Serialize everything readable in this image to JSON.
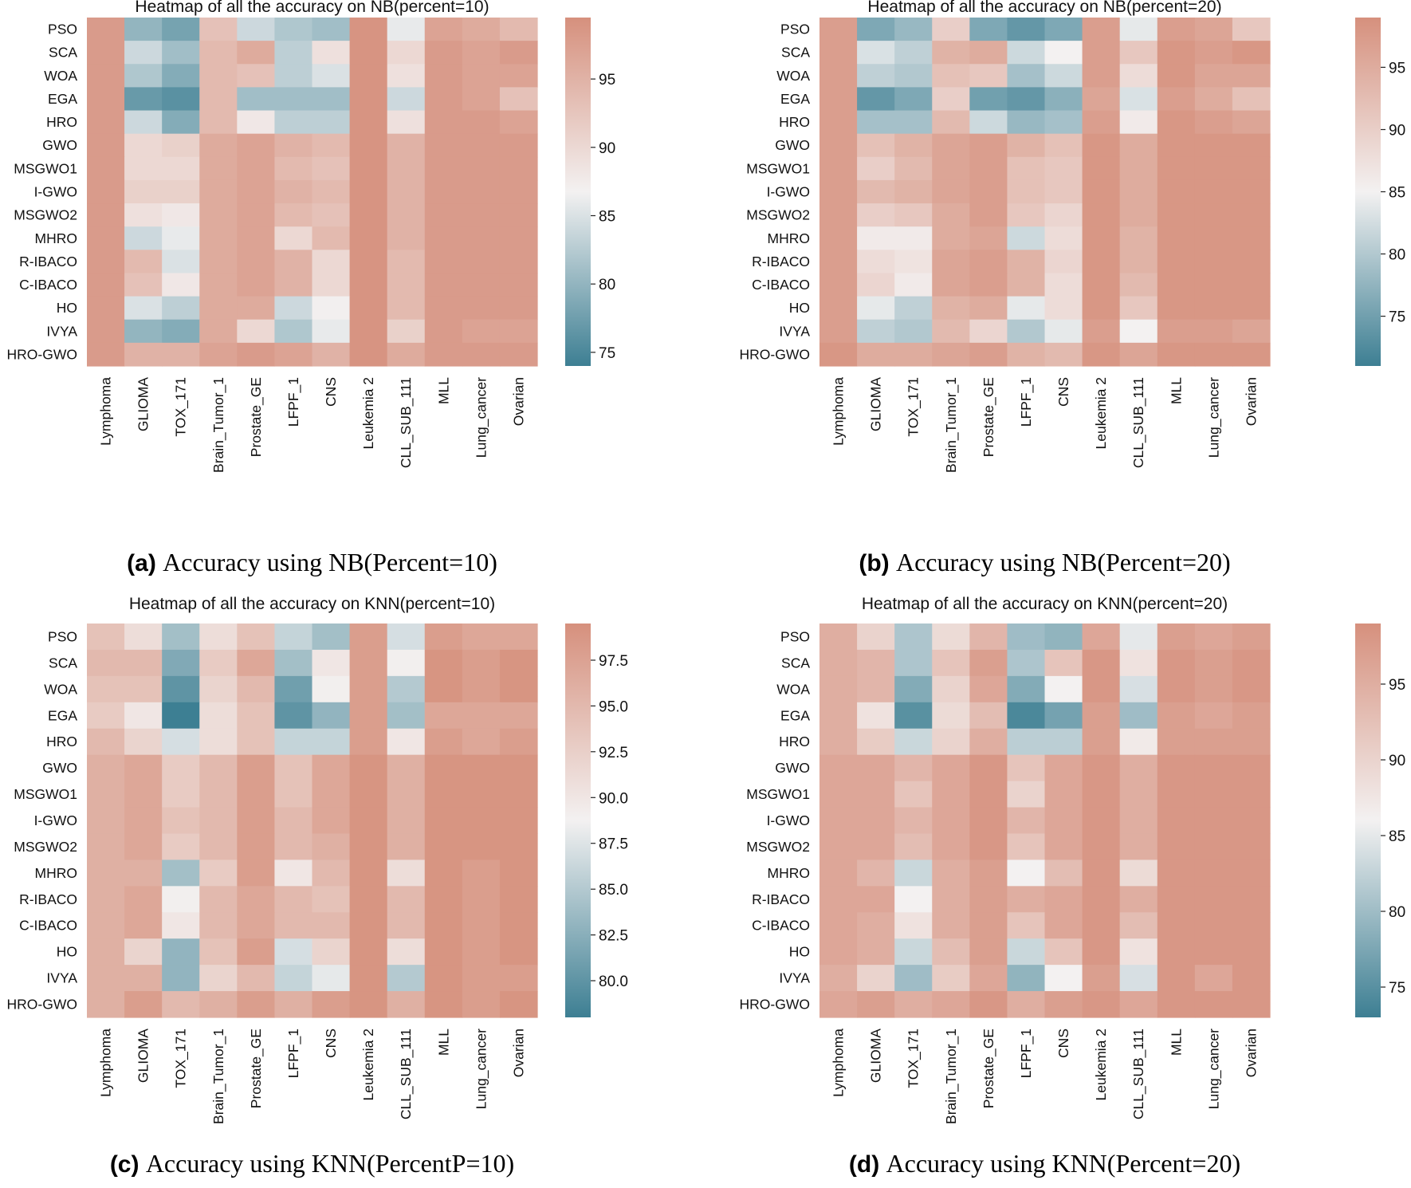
{
  "colormap": {
    "low": "#3d7f93",
    "mid": "#f3f1f1",
    "high": "#d6907d"
  },
  "chart_data": [
    {
      "type": "heatmap",
      "title": "Heatmap of all the accuracy on NB(percent=10)",
      "caption_label": "(a)",
      "caption_text": "Accuracy using NB(Percent=10)",
      "rows": [
        "PSO",
        "SCA",
        "WOA",
        "EGA",
        "HRO",
        "GWO",
        "MSGWO1",
        "I-GWO",
        "MSGWO2",
        "MHRO",
        "R-IBACO",
        "C-IBACO",
        "HO",
        "IVYA",
        "HRO-GWO"
      ],
      "columns": [
        "Lymphoma",
        "GLIOMA",
        "TOX_171",
        "Brain_Tumor_1",
        "Prostate_GE",
        "LFPF_1",
        "CNS",
        "Leukemia 2",
        "CLL_SUB_111",
        "MLL",
        "Lung_cancer",
        "Ovarian"
      ],
      "values": [
        [
          98,
          80,
          78,
          93,
          84,
          82,
          81,
          99,
          86,
          97,
          96,
          94
        ],
        [
          98,
          84,
          81,
          94,
          96,
          83,
          89,
          99,
          90,
          98,
          97,
          98
        ],
        [
          98,
          82,
          79,
          94,
          93,
          83,
          85,
          99,
          89,
          98,
          97,
          97
        ],
        [
          98,
          77,
          76,
          94,
          81,
          81,
          81,
          99,
          84,
          98,
          97,
          93
        ],
        [
          98,
          84,
          79,
          94,
          88,
          83,
          83,
          99,
          89,
          98,
          98,
          97
        ],
        [
          98,
          90,
          91,
          96,
          97,
          95,
          94,
          99,
          95,
          98,
          98,
          98
        ],
        [
          98,
          90,
          90,
          96,
          97,
          94,
          93,
          99,
          95,
          98,
          98,
          98
        ],
        [
          98,
          91,
          91,
          96,
          97,
          95,
          94,
          99,
          95,
          98,
          98,
          98
        ],
        [
          98,
          89,
          88,
          96,
          97,
          94,
          93,
          99,
          95,
          98,
          98,
          98
        ],
        [
          98,
          84,
          86,
          96,
          97,
          90,
          94,
          99,
          95,
          98,
          98,
          98
        ],
        [
          98,
          94,
          85,
          96,
          97,
          95,
          90,
          99,
          94,
          98,
          98,
          98
        ],
        [
          98,
          93,
          88,
          96,
          97,
          95,
          90,
          99,
          94,
          98,
          98,
          98
        ],
        [
          98,
          85,
          83,
          96,
          96,
          84,
          87,
          99,
          94,
          98,
          98,
          98
        ],
        [
          98,
          80,
          79,
          96,
          90,
          82,
          86,
          99,
          91,
          98,
          97,
          97
        ],
        [
          98,
          95,
          95,
          97,
          98,
          97,
          95,
          99,
          96,
          98,
          98,
          98
        ]
      ],
      "vmin": 74,
      "vmax": 99.5,
      "colorbar_ticks": [
        "75",
        "80",
        "85",
        "90",
        "95"
      ]
    },
    {
      "type": "heatmap",
      "title": "Heatmap of all the accuracy on NB(percent=20)",
      "caption_label": "(b)",
      "caption_text": "Accuracy using NB(Percent=20)",
      "rows": [
        "PSO",
        "SCA",
        "WOA",
        "EGA",
        "HRO",
        "GWO",
        "MSGWO1",
        "I-GWO",
        "MSGWO2",
        "MHRO",
        "R-IBACO",
        "C-IBACO",
        "HO",
        "IVYA",
        "HRO-GWO"
      ],
      "columns": [
        "Lymphoma",
        "GLIOMA",
        "TOX_171",
        "Brain_Tumor_1",
        "Prostate_GE",
        "LFPF_1",
        "CNS",
        "Leukemia 2",
        "CLL_SUB_111",
        "MLL",
        "Lung_cancer",
        "Ovarian"
      ],
      "values": [
        [
          97,
          76,
          78,
          90,
          76,
          74,
          76,
          97,
          84,
          97,
          96,
          91
        ],
        [
          97,
          83,
          81,
          94,
          95,
          82,
          85,
          97,
          91,
          98,
          97,
          98
        ],
        [
          97,
          81,
          80,
          92,
          91,
          79,
          82,
          97,
          88,
          98,
          96,
          96
        ],
        [
          97,
          74,
          76,
          90,
          75,
          74,
          77,
          96,
          83,
          97,
          95,
          92
        ],
        [
          97,
          79,
          79,
          93,
          82,
          78,
          79,
          97,
          86,
          98,
          97,
          96
        ],
        [
          97,
          92,
          94,
          96,
          97,
          94,
          92,
          98,
          95,
          98,
          98,
          98
        ],
        [
          97,
          90,
          93,
          96,
          97,
          92,
          91,
          98,
          95,
          98,
          98,
          98
        ],
        [
          97,
          93,
          94,
          96,
          97,
          92,
          91,
          98,
          95,
          98,
          98,
          98
        ],
        [
          97,
          90,
          91,
          95,
          97,
          91,
          89,
          98,
          95,
          98,
          98,
          98
        ],
        [
          97,
          86,
          86,
          95,
          96,
          82,
          88,
          98,
          94,
          98,
          98,
          98
        ],
        [
          97,
          88,
          87,
          96,
          97,
          94,
          89,
          98,
          94,
          98,
          98,
          98
        ],
        [
          97,
          89,
          86,
          96,
          97,
          94,
          88,
          98,
          93,
          98,
          98,
          98
        ],
        [
          97,
          84,
          81,
          94,
          95,
          84,
          88,
          98,
          91,
          98,
          98,
          98
        ],
        [
          97,
          81,
          80,
          93,
          89,
          80,
          84,
          97,
          85,
          97,
          97,
          96
        ],
        [
          98,
          95,
          95,
          96,
          97,
          94,
          93,
          98,
          96,
          98,
          98,
          98
        ]
      ],
      "vmin": 71,
      "vmax": 99,
      "colorbar_ticks": [
        "75",
        "80",
        "85",
        "90",
        "95"
      ]
    },
    {
      "type": "heatmap",
      "title": "Heatmap of all the accuracy on KNN(percent=10)",
      "caption_label": "(c)",
      "caption_text": "Accuracy using KNN(PercentP=10)",
      "rows": [
        "PSO",
        "SCA",
        "WOA",
        "EGA",
        "HRO",
        "GWO",
        "MSGWO1",
        "I-GWO",
        "MSGWO2",
        "MHRO",
        "R-IBACO",
        "C-IBACO",
        "HO",
        "IVYA",
        "HRO-GWO"
      ],
      "columns": [
        "Lymphoma",
        "GLIOMA",
        "TOX_171",
        "Brain_Tumor_1",
        "Prostate_GE",
        "LFPF_1",
        "CNS",
        "Leukemia 2",
        "CLL_SUB_111",
        "MLL",
        "Lung_cancer",
        "Ovarian"
      ],
      "values": [
        [
          94,
          91,
          84,
          91,
          94,
          86,
          84,
          98,
          87,
          98,
          97,
          97
        ],
        [
          95,
          95,
          82,
          93,
          97,
          84,
          90,
          98,
          89,
          99,
          98,
          99
        ],
        [
          94,
          94,
          80,
          92,
          95,
          81,
          89,
          98,
          85,
          99,
          98,
          99
        ],
        [
          93,
          90,
          78,
          91,
          94,
          80,
          83,
          98,
          84,
          97,
          97,
          97
        ],
        [
          95,
          92,
          87,
          91,
          94,
          86,
          86,
          98,
          90,
          98,
          97,
          98
        ],
        [
          96,
          97,
          93,
          95,
          98,
          94,
          97,
          99,
          96,
          99,
          99,
          99
        ],
        [
          96,
          97,
          93,
          95,
          98,
          94,
          97,
          99,
          96,
          99,
          99,
          99
        ],
        [
          96,
          97,
          94,
          95,
          98,
          95,
          97,
          99,
          96,
          99,
          99,
          99
        ],
        [
          96,
          97,
          93,
          95,
          98,
          95,
          96,
          99,
          96,
          99,
          99,
          99
        ],
        [
          96,
          96,
          84,
          93,
          98,
          90,
          95,
          99,
          91,
          99,
          98,
          99
        ],
        [
          96,
          97,
          89,
          95,
          97,
          95,
          94,
          99,
          95,
          99,
          98,
          99
        ],
        [
          96,
          97,
          90,
          95,
          97,
          95,
          95,
          99,
          95,
          99,
          98,
          99
        ],
        [
          96,
          92,
          83,
          94,
          98,
          87,
          92,
          99,
          91,
          99,
          98,
          99
        ],
        [
          96,
          96,
          83,
          92,
          95,
          86,
          88,
          99,
          85,
          99,
          98,
          98
        ],
        [
          96,
          98,
          95,
          96,
          98,
          96,
          98,
          99,
          96,
          99,
          98,
          99
        ]
      ],
      "vmin": 78,
      "vmax": 99.5,
      "colorbar_ticks": [
        "80.0",
        "82.5",
        "85.0",
        "87.5",
        "90.0",
        "92.5",
        "95.0",
        "97.5"
      ]
    },
    {
      "type": "heatmap",
      "title": "Heatmap of all the accuracy on KNN(percent=20)",
      "caption_label": "(d)",
      "caption_text": "Accuracy using KNN(Percent=20)",
      "rows": [
        "PSO",
        "SCA",
        "WOA",
        "EGA",
        "HRO",
        "GWO",
        "MSGWO1",
        "I-GWO",
        "MSGWO2",
        "MHRO",
        "R-IBACO",
        "C-IBACO",
        "HO",
        "IVYA",
        "HRO-GWO"
      ],
      "columns": [
        "Lymphoma",
        "GLIOMA",
        "TOX_171",
        "Brain_Tumor_1",
        "Prostate_GE",
        "LFPF_1",
        "CNS",
        "Leukemia 2",
        "CLL_SUB_111",
        "MLL",
        "Lung_cancer",
        "Ovarian"
      ],
      "values": [
        [
          95,
          90,
          81,
          89,
          94,
          80,
          79,
          96,
          85,
          97,
          96,
          97
        ],
        [
          95,
          94,
          81,
          92,
          97,
          81,
          92,
          98,
          88,
          98,
          97,
          98
        ],
        [
          95,
          94,
          78,
          90,
          96,
          78,
          86,
          98,
          84,
          98,
          97,
          98
        ],
        [
          95,
          88,
          75,
          89,
          93,
          74,
          77,
          97,
          80,
          97,
          96,
          97
        ],
        [
          95,
          91,
          83,
          90,
          95,
          82,
          82,
          97,
          87,
          97,
          97,
          97
        ],
        [
          96,
          96,
          94,
          96,
          98,
          92,
          96,
          98,
          95,
          98,
          98,
          98
        ],
        [
          96,
          96,
          92,
          96,
          98,
          90,
          96,
          98,
          95,
          98,
          98,
          98
        ],
        [
          96,
          96,
          94,
          96,
          98,
          94,
          96,
          98,
          95,
          98,
          98,
          98
        ],
        [
          96,
          96,
          93,
          96,
          98,
          92,
          96,
          98,
          95,
          98,
          98,
          98
        ],
        [
          96,
          94,
          83,
          95,
          97,
          86,
          93,
          98,
          89,
          98,
          98,
          98
        ],
        [
          96,
          96,
          86,
          95,
          97,
          95,
          96,
          98,
          95,
          98,
          98,
          98
        ],
        [
          96,
          95,
          88,
          95,
          97,
          92,
          96,
          98,
          93,
          98,
          98,
          98
        ],
        [
          96,
          95,
          83,
          93,
          97,
          83,
          92,
          98,
          88,
          98,
          98,
          98
        ],
        [
          95,
          90,
          80,
          91,
          96,
          79,
          86,
          97,
          84,
          98,
          96,
          98
        ],
        [
          96,
          97,
          95,
          96,
          98,
          95,
          97,
          98,
          96,
          98,
          98,
          98
        ]
      ],
      "vmin": 73,
      "vmax": 99,
      "colorbar_ticks": [
        "75",
        "80",
        "85",
        "90",
        "95"
      ]
    }
  ]
}
